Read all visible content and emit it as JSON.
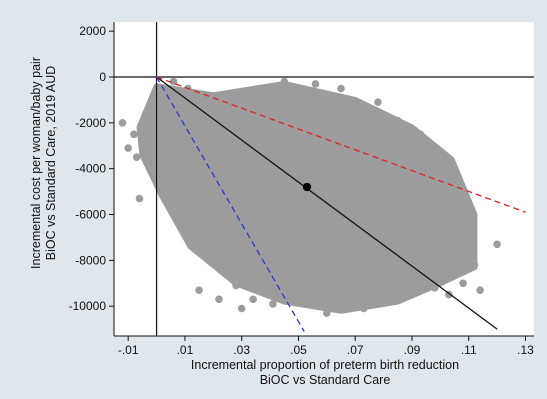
{
  "chart_data": {
    "type": "scatter",
    "title": "",
    "xlabel": [
      "Incremental proportion of preterm birth reduction",
      "BiOC vs Standard Care"
    ],
    "ylabel": [
      "Incremental cost per woman/baby pair",
      "BiOC vs Standard Care, 2019 AUD"
    ],
    "xlim": [
      -0.015,
      0.133
    ],
    "ylim": [
      -11300,
      2400
    ],
    "x_ticks": [
      {
        "value": -0.01,
        "label": "-.01"
      },
      {
        "value": 0.01,
        "label": ".01"
      },
      {
        "value": 0.03,
        "label": ".03"
      },
      {
        "value": 0.05,
        "label": ".05"
      },
      {
        "value": 0.07,
        "label": ".07"
      },
      {
        "value": 0.09,
        "label": ".09"
      },
      {
        "value": 0.11,
        "label": ".11"
      },
      {
        "value": 0.13,
        "label": ".13"
      }
    ],
    "y_ticks": [
      {
        "value": 2000,
        "label": "2000"
      },
      {
        "value": 0,
        "label": "0"
      },
      {
        "value": -2000,
        "label": "-2000"
      },
      {
        "value": -4000,
        "label": "-4000"
      },
      {
        "value": -6000,
        "label": "-6000"
      },
      {
        "value": -8000,
        "label": "-8000"
      },
      {
        "value": -10000,
        "label": "-10000"
      }
    ],
    "grid": false,
    "point_estimate": {
      "x": 0.053,
      "y": -4800
    },
    "lines": [
      {
        "style": "solid",
        "color": "#111111",
        "points": [
          [
            0.0,
            0
          ],
          [
            0.12,
            -11000
          ]
        ]
      },
      {
        "style": "dashed",
        "color": "#e02020",
        "points": [
          [
            0.0,
            0
          ],
          [
            0.13,
            -5900
          ]
        ]
      },
      {
        "style": "dashed",
        "color": "#2a35d6",
        "points": [
          [
            0.0,
            0
          ],
          [
            0.052,
            -11100
          ]
        ]
      }
    ],
    "reference_lines": {
      "x": 0,
      "y": 0
    },
    "cloud_points": [
      [
        -0.012,
        -2000
      ],
      [
        -0.01,
        -3100
      ],
      [
        -0.008,
        -2500
      ],
      [
        -0.007,
        -3500
      ],
      [
        -0.006,
        -5300
      ],
      [
        -0.005,
        -2800
      ],
      [
        -0.004,
        -3200
      ],
      [
        -0.003,
        -2300
      ],
      [
        -0.002,
        -1700
      ],
      [
        -0.002,
        -2900
      ],
      [
        -0.001,
        -1000
      ],
      [
        -0.001,
        -3500
      ],
      [
        0.0,
        -2400
      ],
      [
        0.0,
        -600
      ],
      [
        0.001,
        -1900
      ],
      [
        0.002,
        -900
      ],
      [
        0.002,
        -3000
      ],
      [
        0.003,
        -4300
      ],
      [
        0.004,
        -5400
      ],
      [
        0.005,
        -3700
      ],
      [
        0.005,
        -1300
      ],
      [
        0.006,
        -200
      ],
      [
        0.006,
        -6000
      ],
      [
        0.007,
        -2700
      ],
      [
        0.008,
        -800
      ],
      [
        0.008,
        -4800
      ],
      [
        0.009,
        -1500
      ],
      [
        0.009,
        -6200
      ],
      [
        0.01,
        -3200
      ],
      [
        0.011,
        -500
      ],
      [
        0.011,
        -5600
      ],
      [
        0.012,
        -2300
      ],
      [
        0.013,
        -7000
      ],
      [
        0.013,
        -1100
      ],
      [
        0.014,
        -4100
      ],
      [
        0.015,
        -6600
      ],
      [
        0.016,
        -1800
      ],
      [
        0.017,
        -5100
      ],
      [
        0.017,
        -7600
      ],
      [
        0.018,
        -2900
      ],
      [
        0.019,
        -900
      ],
      [
        0.02,
        -4500
      ],
      [
        0.021,
        -7900
      ],
      [
        0.021,
        -3600
      ],
      [
        0.022,
        -6300
      ],
      [
        0.023,
        -1500
      ],
      [
        0.024,
        -5500
      ],
      [
        0.025,
        -8300
      ],
      [
        0.025,
        -2600
      ],
      [
        0.026,
        -7200
      ],
      [
        0.027,
        -4000
      ],
      [
        0.028,
        -9100
      ],
      [
        0.028,
        -1200
      ],
      [
        0.029,
        -6100
      ],
      [
        0.03,
        -3200
      ],
      [
        0.031,
        -8600
      ],
      [
        0.031,
        -5000
      ],
      [
        0.032,
        -2100
      ],
      [
        0.033,
        -7500
      ],
      [
        0.034,
        -9700
      ],
      [
        0.034,
        -4300
      ],
      [
        0.035,
        -600
      ],
      [
        0.036,
        -6700
      ],
      [
        0.037,
        -3100
      ],
      [
        0.037,
        -8900
      ],
      [
        0.038,
        -5300
      ],
      [
        0.039,
        -1700
      ],
      [
        0.04,
        -7400
      ],
      [
        0.041,
        -4000
      ],
      [
        0.041,
        -9900
      ],
      [
        0.042,
        -2600
      ],
      [
        0.043,
        -6200
      ],
      [
        0.044,
        -8300
      ],
      [
        0.044,
        -1000
      ],
      [
        0.045,
        -4900
      ],
      [
        0.046,
        -7100
      ],
      [
        0.047,
        -3400
      ],
      [
        0.047,
        -9300
      ],
      [
        0.048,
        -5800
      ],
      [
        0.049,
        -2200
      ],
      [
        0.05,
        -7700
      ],
      [
        0.051,
        -4200
      ],
      [
        0.051,
        -9800
      ],
      [
        0.052,
        -1300
      ],
      [
        0.053,
        -6400
      ],
      [
        0.054,
        -3000
      ],
      [
        0.054,
        -8600
      ],
      [
        0.055,
        -5300
      ],
      [
        0.056,
        -300
      ],
      [
        0.057,
        -7300
      ],
      [
        0.057,
        -2200
      ],
      [
        0.058,
        -4700
      ],
      [
        0.059,
        -9400
      ],
      [
        0.06,
        -6100
      ],
      [
        0.061,
        -1500
      ],
      [
        0.061,
        -8100
      ],
      [
        0.062,
        -3600
      ],
      [
        0.063,
        -5500
      ],
      [
        0.064,
        -7600
      ],
      [
        0.064,
        -2600
      ],
      [
        0.065,
        -9600
      ],
      [
        0.066,
        -4300
      ],
      [
        0.067,
        -6700
      ],
      [
        0.067,
        -1200
      ],
      [
        0.068,
        -8400
      ],
      [
        0.069,
        -3100
      ],
      [
        0.07,
        -5700
      ],
      [
        0.071,
        -7800
      ],
      [
        0.071,
        -2000
      ],
      [
        0.072,
        -9300
      ],
      [
        0.073,
        -4500
      ],
      [
        0.074,
        -6300
      ],
      [
        0.074,
        -3300
      ],
      [
        0.075,
        -8700
      ],
      [
        0.076,
        -5200
      ],
      [
        0.077,
        -2500
      ],
      [
        0.077,
        -7100
      ],
      [
        0.078,
        -9800
      ],
      [
        0.079,
        -4000
      ],
      [
        0.08,
        -6600
      ],
      [
        0.081,
        -3400
      ],
      [
        0.081,
        -8200
      ],
      [
        0.082,
        -5000
      ],
      [
        0.083,
        -7500
      ],
      [
        0.084,
        -2900
      ],
      [
        0.084,
        -9400
      ],
      [
        0.085,
        -4500
      ],
      [
        0.086,
        -6200
      ],
      [
        0.087,
        -3500
      ],
      [
        0.087,
        -8600
      ],
      [
        0.088,
        -5400
      ],
      [
        0.089,
        -7200
      ],
      [
        0.09,
        -4100
      ],
      [
        0.091,
        -9100
      ],
      [
        0.091,
        -6000
      ],
      [
        0.092,
        -3700
      ],
      [
        0.093,
        -7700
      ],
      [
        0.094,
        -5000
      ],
      [
        0.095,
        -8400
      ],
      [
        0.096,
        -4300
      ],
      [
        0.097,
        -6600
      ],
      [
        0.098,
        -5400
      ],
      [
        0.098,
        -9200
      ],
      [
        0.099,
        -7300
      ],
      [
        0.1,
        -4900
      ],
      [
        0.101,
        -8000
      ],
      [
        0.102,
        -6200
      ],
      [
        0.103,
        -9500
      ],
      [
        0.104,
        -5600
      ],
      [
        0.105,
        -7600
      ],
      [
        0.106,
        -8500
      ],
      [
        0.107,
        -6500
      ],
      [
        0.108,
        -9000
      ],
      [
        0.11,
        -7000
      ],
      [
        0.112,
        -8200
      ],
      [
        0.114,
        -9300
      ],
      [
        0.12,
        -7300
      ],
      [
        0.085,
        -1900
      ],
      [
        0.093,
        -2500
      ],
      [
        0.078,
        -1100
      ],
      [
        0.065,
        -500
      ],
      [
        0.045,
        -200
      ],
      [
        0.1,
        -3300
      ],
      [
        0.105,
        -5000
      ],
      [
        0.015,
        -9300
      ],
      [
        0.022,
        -9700
      ],
      [
        0.03,
        -10100
      ],
      [
        0.06,
        -10300
      ],
      [
        0.073,
        -10100
      ]
    ]
  }
}
